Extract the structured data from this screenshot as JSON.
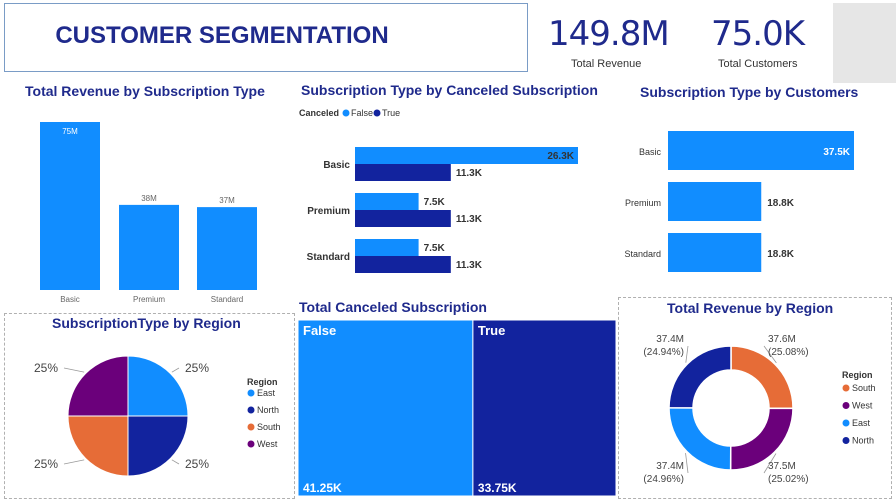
{
  "header": {
    "title": "CUSTOMER SEGMENTATION"
  },
  "kpis": [
    {
      "value": "149.8M",
      "label": "Total Revenue"
    },
    {
      "value": "75.0K",
      "label": "Total Customers"
    }
  ],
  "colors": {
    "blue": "#118dff",
    "navy": "#12239e",
    "orange": "#e66c37",
    "purple": "#6b007b",
    "title": "#1f2a8c"
  },
  "chart_data": [
    {
      "id": "revenue-by-subscription",
      "type": "bar",
      "title": "Total Revenue by Subscription Type",
      "categories": [
        "Basic",
        "Premium",
        "Standard"
      ],
      "values": [
        75,
        38,
        37
      ],
      "data_labels": [
        "75M",
        "38M",
        "37M"
      ],
      "ylim": [
        0,
        75
      ]
    },
    {
      "id": "subscription-by-canceled",
      "type": "bar",
      "orientation": "horizontal",
      "title": "Subscription Type by Canceled Subscription",
      "legend_title": "Canceled",
      "categories": [
        "Basic",
        "Premium",
        "Standard"
      ],
      "series": [
        {
          "name": "False",
          "values": [
            26.3,
            7.5,
            7.5
          ],
          "labels": [
            "26.3K",
            "7.5K",
            "7.5K"
          ]
        },
        {
          "name": "True",
          "values": [
            11.3,
            11.3,
            11.3
          ],
          "labels": [
            "11.3K",
            "11.3K",
            "11.3K"
          ]
        }
      ],
      "xlim": [
        0,
        26.3
      ]
    },
    {
      "id": "subscription-by-customers",
      "type": "bar",
      "orientation": "horizontal",
      "title": "Subscription Type by Customers",
      "categories": [
        "Basic",
        "Premium",
        "Standard"
      ],
      "values": [
        37.5,
        18.8,
        18.8
      ],
      "data_labels": [
        "37.5K",
        "18.8K",
        "18.8K"
      ],
      "xlim": [
        0,
        37.5
      ]
    },
    {
      "id": "subscription-by-region",
      "type": "pie",
      "title": "SubscriptionType by Region",
      "legend_title": "Region",
      "categories": [
        "East",
        "North",
        "South",
        "West"
      ],
      "values": [
        25,
        25,
        25,
        25
      ],
      "data_labels": [
        "25%",
        "25%",
        "25%",
        "25%"
      ]
    },
    {
      "id": "total-canceled-subscription",
      "type": "treemap",
      "title": "Total Canceled Subscription",
      "categories": [
        "False",
        "True"
      ],
      "values": [
        41.25,
        33.75
      ],
      "data_labels": [
        "41.25K",
        "33.75K"
      ]
    },
    {
      "id": "revenue-by-region",
      "type": "pie",
      "donut": true,
      "title": "Total Revenue by Region",
      "legend_title": "Region",
      "categories": [
        "South",
        "West",
        "East",
        "North"
      ],
      "values": [
        37.6,
        37.5,
        37.4,
        37.4
      ],
      "data_labels": [
        "37.6M",
        "37.5M",
        "37.4M",
        "37.4M"
      ],
      "percent_labels": [
        "(25.08%)",
        "(25.02%)",
        "(24.96%)",
        "(24.94%)"
      ]
    }
  ]
}
